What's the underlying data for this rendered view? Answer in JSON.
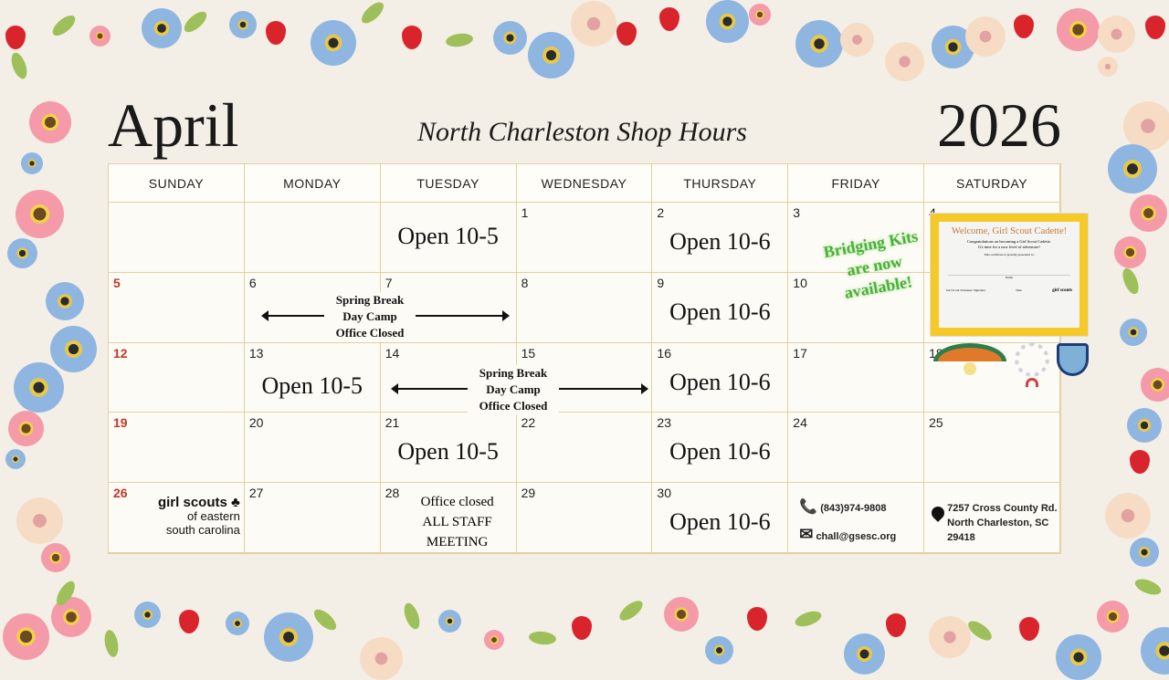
{
  "header": {
    "month": "April",
    "year": "2026",
    "subtitle": "North Charleston Shop Hours"
  },
  "weekdays": [
    "SUNDAY",
    "MONDAY",
    "TUESDAY",
    "WEDNESDAY",
    "THURSDAY",
    "FRIDAY",
    "SATURDAY"
  ],
  "days": {
    "d1": "1",
    "d2": "2",
    "d3": "3",
    "d4": "4",
    "d5": "5",
    "d6": "6",
    "d7": "7",
    "d8": "8",
    "d9": "9",
    "d10": "10",
    "d12": "12",
    "d13": "13",
    "d14": "14",
    "d15": "15",
    "d16": "16",
    "d17": "17",
    "d18": "18",
    "d19": "19",
    "d20": "20",
    "d21": "21",
    "d22": "22",
    "d23": "23",
    "d24": "24",
    "d25": "25",
    "d26": "26",
    "d27": "27",
    "d28": "28",
    "d29": "29",
    "d30": "30"
  },
  "hours": {
    "tue": "Open 10-5",
    "thu": "Open 10-6",
    "mon": "Open 10-5"
  },
  "spring_break": {
    "line1": "Spring Break",
    "line2": "Day Camp",
    "line3": "Office Closed"
  },
  "staff_meeting": {
    "line1": "Office closed",
    "line2": "ALL STAFF",
    "line3": "MEETING"
  },
  "promo": {
    "line1": "Bridging Kits",
    "line2": "are now",
    "line3": "available!"
  },
  "certificate": {
    "title": "Welcome, Girl Scout Cadette!",
    "body": "Congratulations on becoming a Girl Scout Cadette. It's time for a new level of adventure!",
    "presented": "This certificate is proudly presented to:",
    "name": "Name",
    "signature": "Girl Scout Volunteer Signature",
    "date": "Date",
    "logo": "girl scouts"
  },
  "logo": {
    "line1": "girl scouts",
    "line2": "of eastern",
    "line3": "south carolina"
  },
  "contact": {
    "phone": "(843)974-9808",
    "email": "chall@gsesc.org",
    "address1": "7257 Cross County Rd.",
    "address2": "North Charleston, SC",
    "address3": "29418"
  },
  "colors": {
    "accent_red": "#c0392b",
    "grid_border": "#e3cfa3",
    "promo_green": "#4caf3a",
    "background": "#f4efe6"
  }
}
